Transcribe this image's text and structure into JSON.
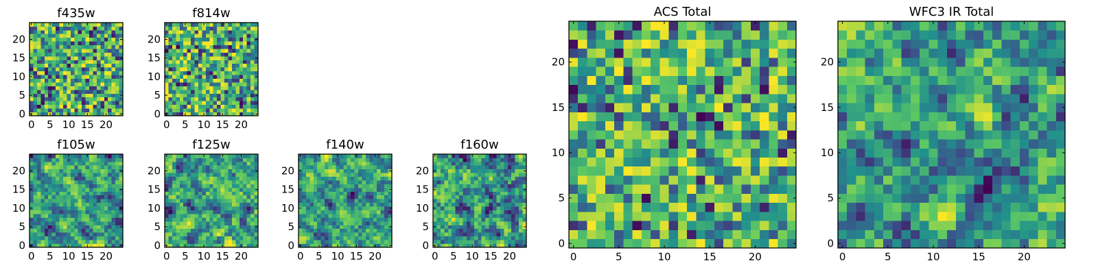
{
  "chart_data": [
    {
      "id": "p-f435w",
      "type": "heatmap",
      "title": "f435w",
      "nx": 25,
      "ny": 25,
      "xlim": [
        -0.5,
        24.5
      ],
      "ylim": [
        -0.5,
        24.5
      ],
      "xticks": [
        0,
        5,
        10,
        15,
        20
      ],
      "yticks": [
        0,
        5,
        10,
        15,
        20
      ],
      "seed": 435,
      "smooth": 0
    },
    {
      "id": "p-f814w",
      "type": "heatmap",
      "title": "f814w",
      "nx": 25,
      "ny": 25,
      "xlim": [
        -0.5,
        24.5
      ],
      "ylim": [
        -0.5,
        24.5
      ],
      "xticks": [
        0,
        5,
        10,
        15,
        20
      ],
      "yticks": [
        0,
        5,
        10,
        15,
        20
      ],
      "seed": 814,
      "smooth": 0
    },
    {
      "id": "p-f105w",
      "type": "heatmap",
      "title": "f105w",
      "nx": 25,
      "ny": 25,
      "xlim": [
        -0.5,
        24.5
      ],
      "ylim": [
        -0.5,
        24.5
      ],
      "xticks": [
        0,
        5,
        10,
        15,
        20
      ],
      "yticks": [
        0,
        5,
        10,
        15,
        20
      ],
      "seed": 105,
      "smooth": 1
    },
    {
      "id": "p-f125w",
      "type": "heatmap",
      "title": "f125w",
      "nx": 25,
      "ny": 25,
      "xlim": [
        -0.5,
        24.5
      ],
      "ylim": [
        -0.5,
        24.5
      ],
      "xticks": [
        0,
        5,
        10,
        15,
        20
      ],
      "yticks": [
        0,
        5,
        10,
        15,
        20
      ],
      "seed": 125,
      "smooth": 1
    },
    {
      "id": "p-f140w",
      "type": "heatmap",
      "title": "f140w",
      "nx": 25,
      "ny": 25,
      "xlim": [
        -0.5,
        24.5
      ],
      "ylim": [
        -0.5,
        24.5
      ],
      "xticks": [
        0,
        5,
        10,
        15,
        20
      ],
      "yticks": [
        0,
        5,
        10,
        15,
        20
      ],
      "seed": 140,
      "smooth": 1
    },
    {
      "id": "p-f160w",
      "type": "heatmap",
      "title": "f160w",
      "nx": 25,
      "ny": 25,
      "xlim": [
        -0.5,
        24.5
      ],
      "ylim": [
        -0.5,
        24.5
      ],
      "xticks": [
        0,
        5,
        10,
        15,
        20
      ],
      "yticks": [
        0,
        5,
        10,
        15,
        20
      ],
      "seed": 160,
      "smooth": 1
    },
    {
      "id": "p-acs-total",
      "type": "heatmap",
      "title": "ACS Total",
      "nx": 25,
      "ny": 25,
      "xlim": [
        -0.5,
        24.5
      ],
      "ylim": [
        -0.5,
        24.5
      ],
      "xticks": [
        0,
        5,
        10,
        15,
        20
      ],
      "yticks": [
        0,
        5,
        10,
        15,
        20
      ],
      "seed": 1249,
      "smooth": 0
    },
    {
      "id": "p-wfc3-ir-total",
      "type": "heatmap",
      "title": "WFC3 IR Total",
      "nx": 25,
      "ny": 25,
      "xlim": [
        -0.5,
        24.5
      ],
      "ylim": [
        -0.5,
        24.5
      ],
      "xticks": [
        0,
        5,
        10,
        15,
        20
      ],
      "yticks": [
        0,
        5,
        10,
        15,
        20
      ],
      "seed": 530,
      "smooth": 1
    }
  ],
  "colormap": [
    "#440154",
    "#3b528b",
    "#21918c",
    "#5ec962",
    "#fde725"
  ],
  "grid": false
}
